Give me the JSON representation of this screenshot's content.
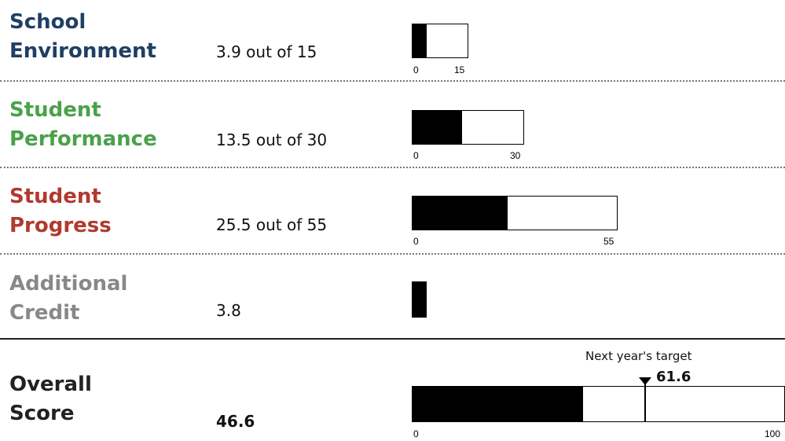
{
  "chart_data": {
    "type": "bar",
    "rows": [
      {
        "label_line1": "School",
        "label_line2": "Environment",
        "score_text": "3.9 out of 15",
        "value": 3.9,
        "max": 15,
        "min_label": "0",
        "max_label": "15",
        "color": "#1f3f63"
      },
      {
        "label_line1": "Student",
        "label_line2": "Performance",
        "score_text": "13.5 out of 30",
        "value": 13.5,
        "max": 30,
        "min_label": "0",
        "max_label": "30",
        "color": "#4aa14a"
      },
      {
        "label_line1": "Student",
        "label_line2": "Progress",
        "score_text": "25.5 out of 55",
        "value": 25.5,
        "max": 55,
        "min_label": "0",
        "max_label": "55",
        "color": "#b03a2e"
      },
      {
        "label_line1": "Additional",
        "label_line2": "Credit",
        "score_text": "3.8",
        "value": 3.8,
        "max": null,
        "min_label": "",
        "max_label": "",
        "color": "#888888"
      }
    ],
    "overall": {
      "label_line1": "Overall",
      "label_line2": "Score",
      "score_text": "46.6",
      "value": 46.6,
      "max": 100,
      "min_label": "0",
      "max_label": "100",
      "target_caption": "Next year's target",
      "target_text": "61.6",
      "target_value": 61.6,
      "color": "#222222"
    }
  }
}
